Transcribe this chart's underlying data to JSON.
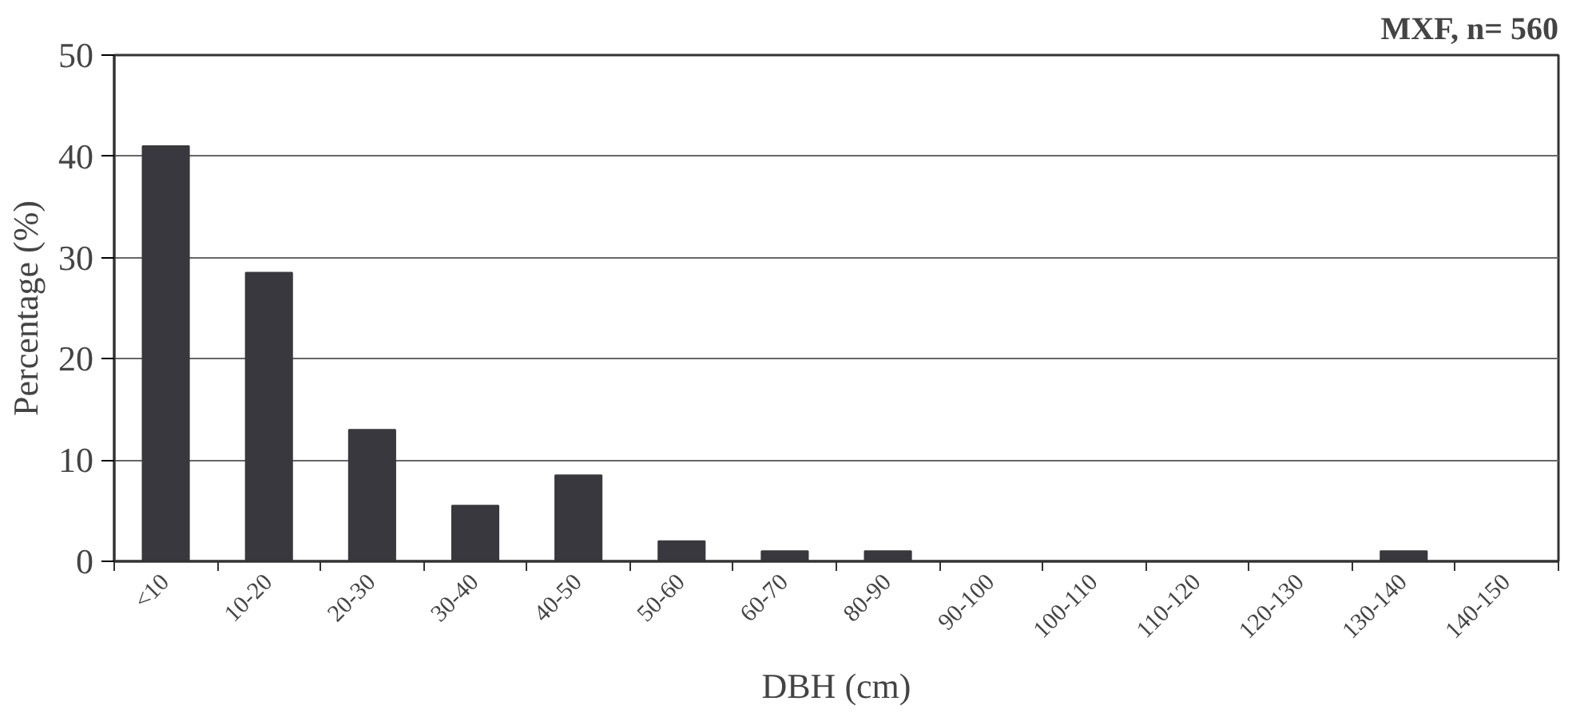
{
  "chart_data": {
    "type": "bar",
    "title": "MXF, n= 560",
    "xlabel": "DBH (cm)",
    "ylabel": "Percentage (%)",
    "categories": [
      "<10",
      "10-20",
      "20-30",
      "30-40",
      "40-50",
      "50-60",
      "60-70",
      "80-90",
      "90-100",
      "100-110",
      "110-120",
      "120-130",
      "130-140",
      "140-150"
    ],
    "values": [
      41,
      28.5,
      13,
      5.5,
      8.5,
      2,
      1,
      1,
      0,
      0,
      0,
      0,
      1,
      0
    ],
    "color": "#38383e",
    "ylim": [
      0,
      50
    ],
    "yticks": [
      0,
      10,
      20,
      30,
      40,
      50
    ],
    "grid": "y"
  }
}
